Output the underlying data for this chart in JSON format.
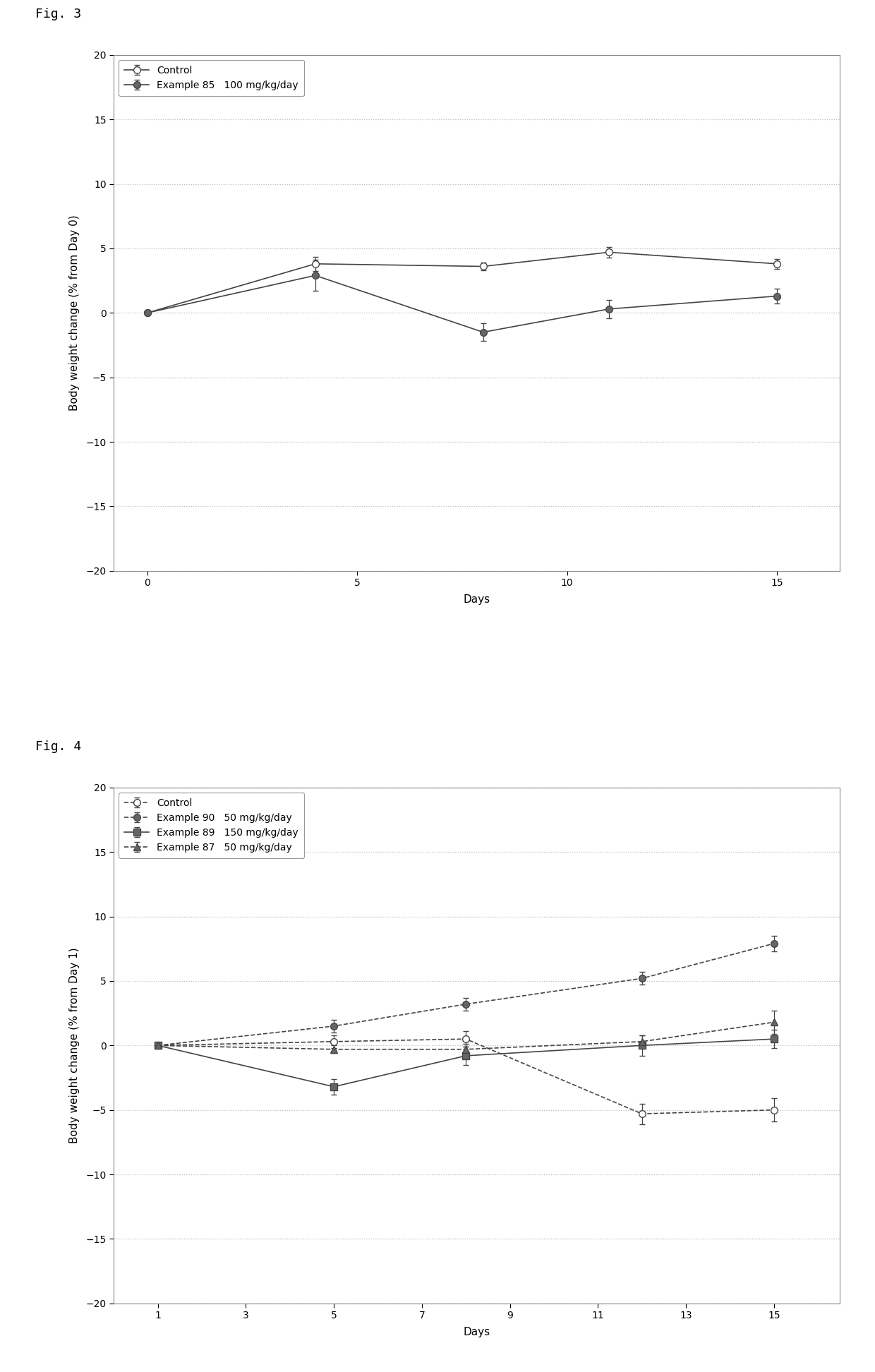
{
  "fig3": {
    "fig_label": "Fig. 3",
    "xlabel": "Days",
    "ylabel": "Body weight change (% from Day 0)",
    "xlim": [
      -0.8,
      16.5
    ],
    "ylim": [
      -20,
      20
    ],
    "yticks": [
      -20,
      -15,
      -10,
      -5,
      0,
      5,
      10,
      15,
      20
    ],
    "xticks": [
      0,
      5,
      10,
      15
    ],
    "series": [
      {
        "label": "Control",
        "x": [
          0,
          4,
          8,
          11,
          15
        ],
        "y": [
          0.0,
          3.8,
          3.6,
          4.7,
          3.8
        ],
        "yerr": [
          0.0,
          0.55,
          0.3,
          0.4,
          0.4
        ],
        "color": "#444444",
        "linestyle": "-",
        "marker": "o",
        "markerfacecolor": "white",
        "markeredgecolor": "#444444",
        "markersize": 7,
        "linewidth": 1.2
      },
      {
        "label": "Example 85   100 mg/kg/day",
        "x": [
          0,
          4,
          8,
          11,
          15
        ],
        "y": [
          0.0,
          2.9,
          -1.5,
          0.3,
          1.3
        ],
        "yerr": [
          0.0,
          1.2,
          0.7,
          0.7,
          0.6
        ],
        "color": "#444444",
        "linestyle": "-",
        "marker": "o",
        "markerfacecolor": "#666666",
        "markeredgecolor": "#444444",
        "markersize": 7,
        "linewidth": 1.2
      }
    ],
    "legend_loc": "upper left"
  },
  "fig4": {
    "fig_label": "Fig. 4",
    "xlabel": "Days",
    "ylabel": "Body weight change (% from Day 1)",
    "xlim": [
      0,
      16.5
    ],
    "ylim": [
      -20.0,
      20.0
    ],
    "yticks": [
      -20.0,
      -15.0,
      -10.0,
      -5.0,
      0.0,
      5.0,
      10.0,
      15.0,
      20.0
    ],
    "xticks": [
      1,
      3,
      5,
      7,
      9,
      11,
      13,
      15
    ],
    "series": [
      {
        "label": "Control",
        "x": [
          1,
          5,
          8,
          12,
          15
        ],
        "y": [
          0.0,
          0.3,
          0.5,
          -5.3,
          -5.0
        ],
        "yerr": [
          0.05,
          0.5,
          0.6,
          0.8,
          0.9
        ],
        "color": "#444444",
        "linestyle": "--",
        "marker": "o",
        "markerfacecolor": "white",
        "markeredgecolor": "#444444",
        "markersize": 7,
        "linewidth": 1.2
      },
      {
        "label": "Example 90   50 mg/kg/day",
        "x": [
          1,
          5,
          8,
          12,
          15
        ],
        "y": [
          0.0,
          1.5,
          3.2,
          5.2,
          7.9
        ],
        "yerr": [
          0.05,
          0.5,
          0.5,
          0.5,
          0.6
        ],
        "color": "#444444",
        "linestyle": "--",
        "marker": "o",
        "markerfacecolor": "#666666",
        "markeredgecolor": "#444444",
        "markersize": 7,
        "linewidth": 1.2
      },
      {
        "label": "Example 89   150 mg/kg/day",
        "x": [
          1,
          5,
          8,
          12,
          15
        ],
        "y": [
          0.0,
          -3.2,
          -0.8,
          0.0,
          0.5
        ],
        "yerr": [
          0.05,
          0.6,
          0.7,
          0.8,
          0.7
        ],
        "color": "#444444",
        "linestyle": "-",
        "marker": "s",
        "markerfacecolor": "#666666",
        "markeredgecolor": "#444444",
        "markersize": 7,
        "linewidth": 1.2
      },
      {
        "label": "Example 87   50 mg/kg/day",
        "x": [
          1,
          5,
          8,
          12,
          15
        ],
        "y": [
          0.0,
          -0.3,
          -0.3,
          0.3,
          1.8
        ],
        "yerr": [
          0.05,
          0.3,
          0.4,
          0.5,
          0.9
        ],
        "color": "#444444",
        "linestyle": "--",
        "marker": "^",
        "markerfacecolor": "#666666",
        "markeredgecolor": "#444444",
        "markersize": 7,
        "linewidth": 1.2
      }
    ],
    "legend_loc": "upper left"
  },
  "background_color": "#ffffff",
  "grid_color": "#bbbbbb",
  "fig_label_fontsize": 13,
  "axis_label_fontsize": 11,
  "tick_fontsize": 10,
  "legend_fontsize": 10
}
